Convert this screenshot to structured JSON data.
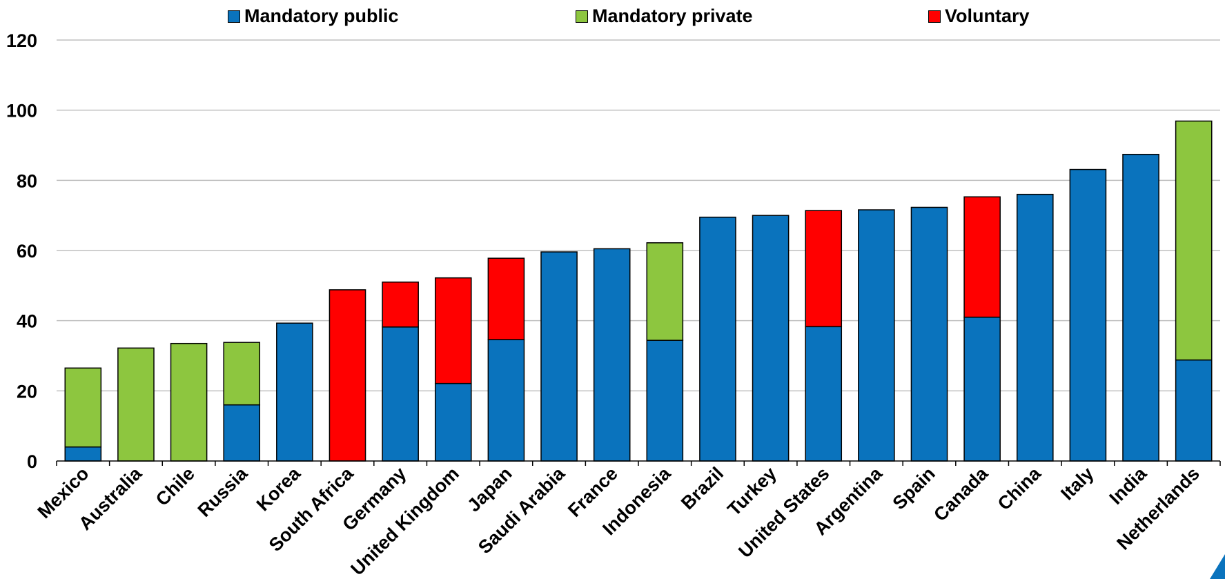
{
  "chart_data": {
    "type": "bar",
    "stacked": true,
    "categories": [
      "Mexico",
      "Australia",
      "Chile",
      "Russia",
      "Korea",
      "South Africa",
      "Germany",
      "United Kingdom",
      "Japan",
      "Saudi Arabia",
      "France",
      "Indonesia",
      "Brazil",
      "Turkey",
      "United States",
      "Argentina",
      "Spain",
      "Canada",
      "China",
      "Italy",
      "India",
      "Netherlands"
    ],
    "series": [
      {
        "name": "Mandatory public",
        "color": "#0a73bd",
        "values": [
          4,
          0,
          0,
          16,
          39.3,
          0,
          38.2,
          22.1,
          34.6,
          59.6,
          60.5,
          34.4,
          69.5,
          70,
          38.3,
          71.6,
          72.3,
          41,
          76,
          83.1,
          87.4,
          28.8
        ]
      },
      {
        "name": "Mandatory private",
        "color": "#8dc63f",
        "values": [
          22.5,
          32.2,
          33.5,
          17.8,
          0,
          0,
          0,
          0,
          0,
          0,
          0,
          27.8,
          0,
          0,
          0,
          0,
          0,
          0,
          0,
          0,
          0,
          68.1
        ]
      },
      {
        "name": "Voluntary",
        "color": "#ff0000",
        "values": [
          0,
          0,
          0,
          0,
          0,
          48.8,
          12.8,
          30.1,
          23.2,
          0,
          0,
          0,
          0,
          0,
          33.1,
          0,
          0,
          34.3,
          0,
          0,
          0,
          0
        ]
      }
    ],
    "ylim": [
      0,
      120
    ],
    "yticks": [
      0,
      20,
      40,
      60,
      80,
      100,
      120
    ],
    "grid": true,
    "legend_position": "top"
  }
}
